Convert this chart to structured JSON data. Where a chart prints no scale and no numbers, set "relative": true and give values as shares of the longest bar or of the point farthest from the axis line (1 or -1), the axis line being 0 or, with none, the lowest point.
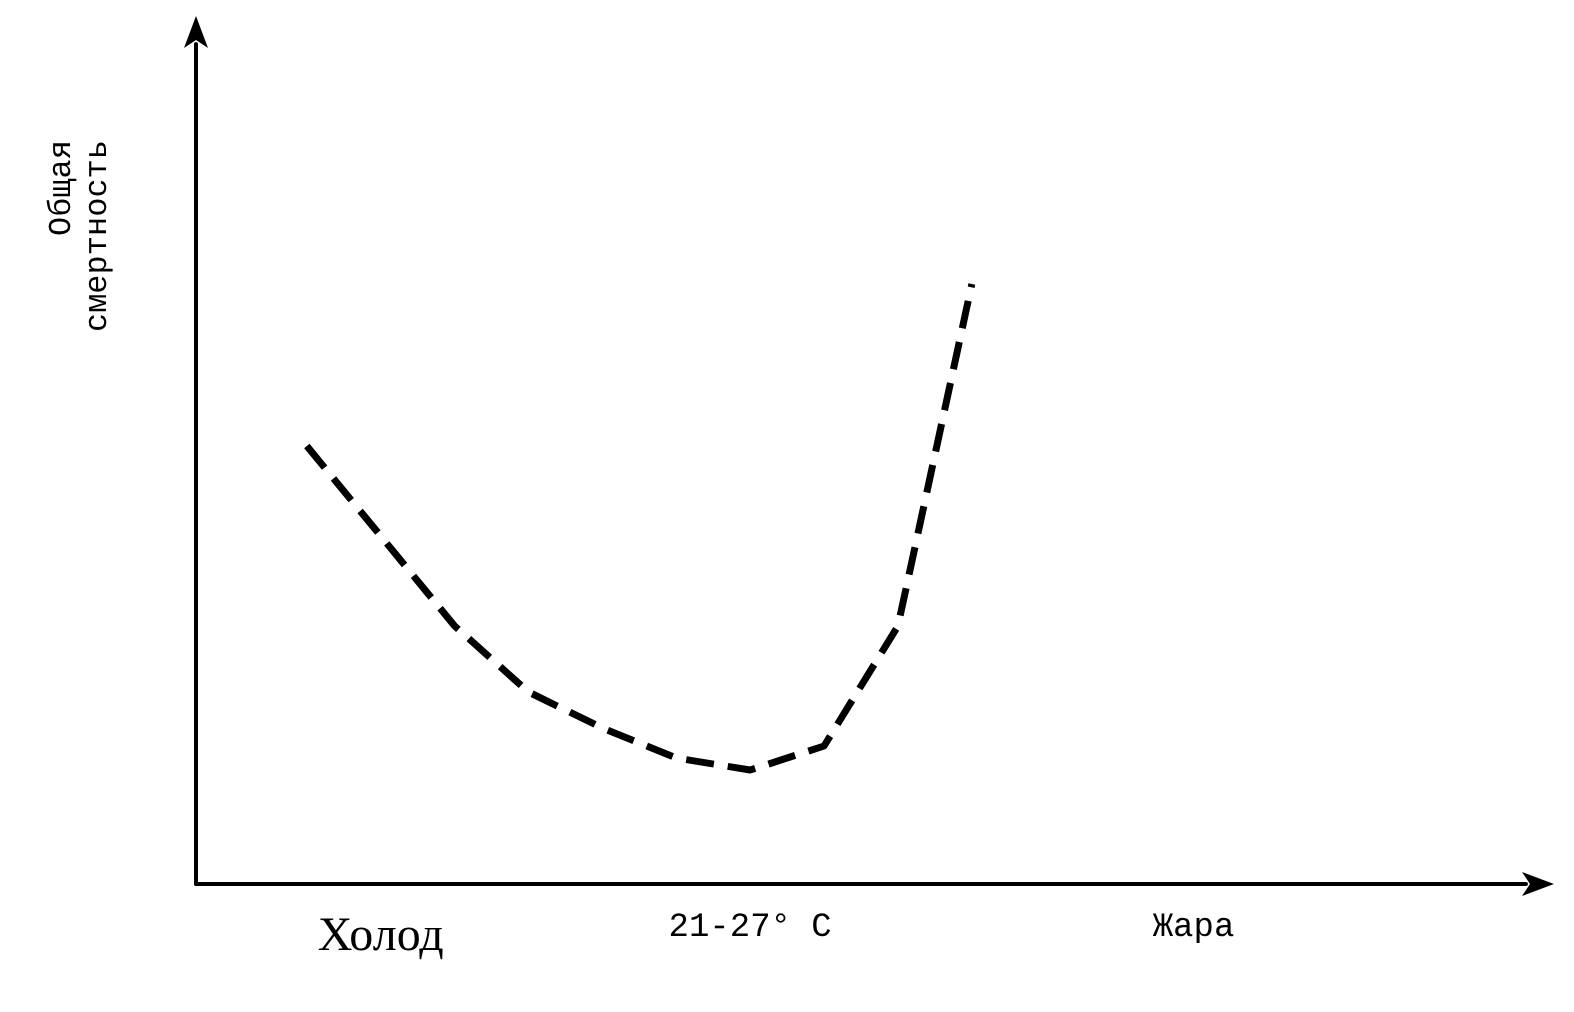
{
  "chart_data": {
    "type": "line",
    "relative": true,
    "ylabel": "Общая\nсмертность",
    "categories": [
      null,
      null,
      "Холод",
      null,
      null,
      null,
      null,
      "21-27° C",
      null,
      null,
      null,
      null,
      null,
      "Жара",
      null,
      null,
      null,
      null
    ],
    "series": [
      {
        "color": "#000000",
        "values": [
          null,
          0.73,
          0.58,
          0.43,
          0.32,
          0.26,
          0.21,
          0.19,
          0.23,
          0.43,
          1,
          null,
          null,
          null,
          null,
          null,
          null,
          null
        ]
      }
    ],
    "line_style": "dashed",
    "marker": "none",
    "grid": false
  }
}
